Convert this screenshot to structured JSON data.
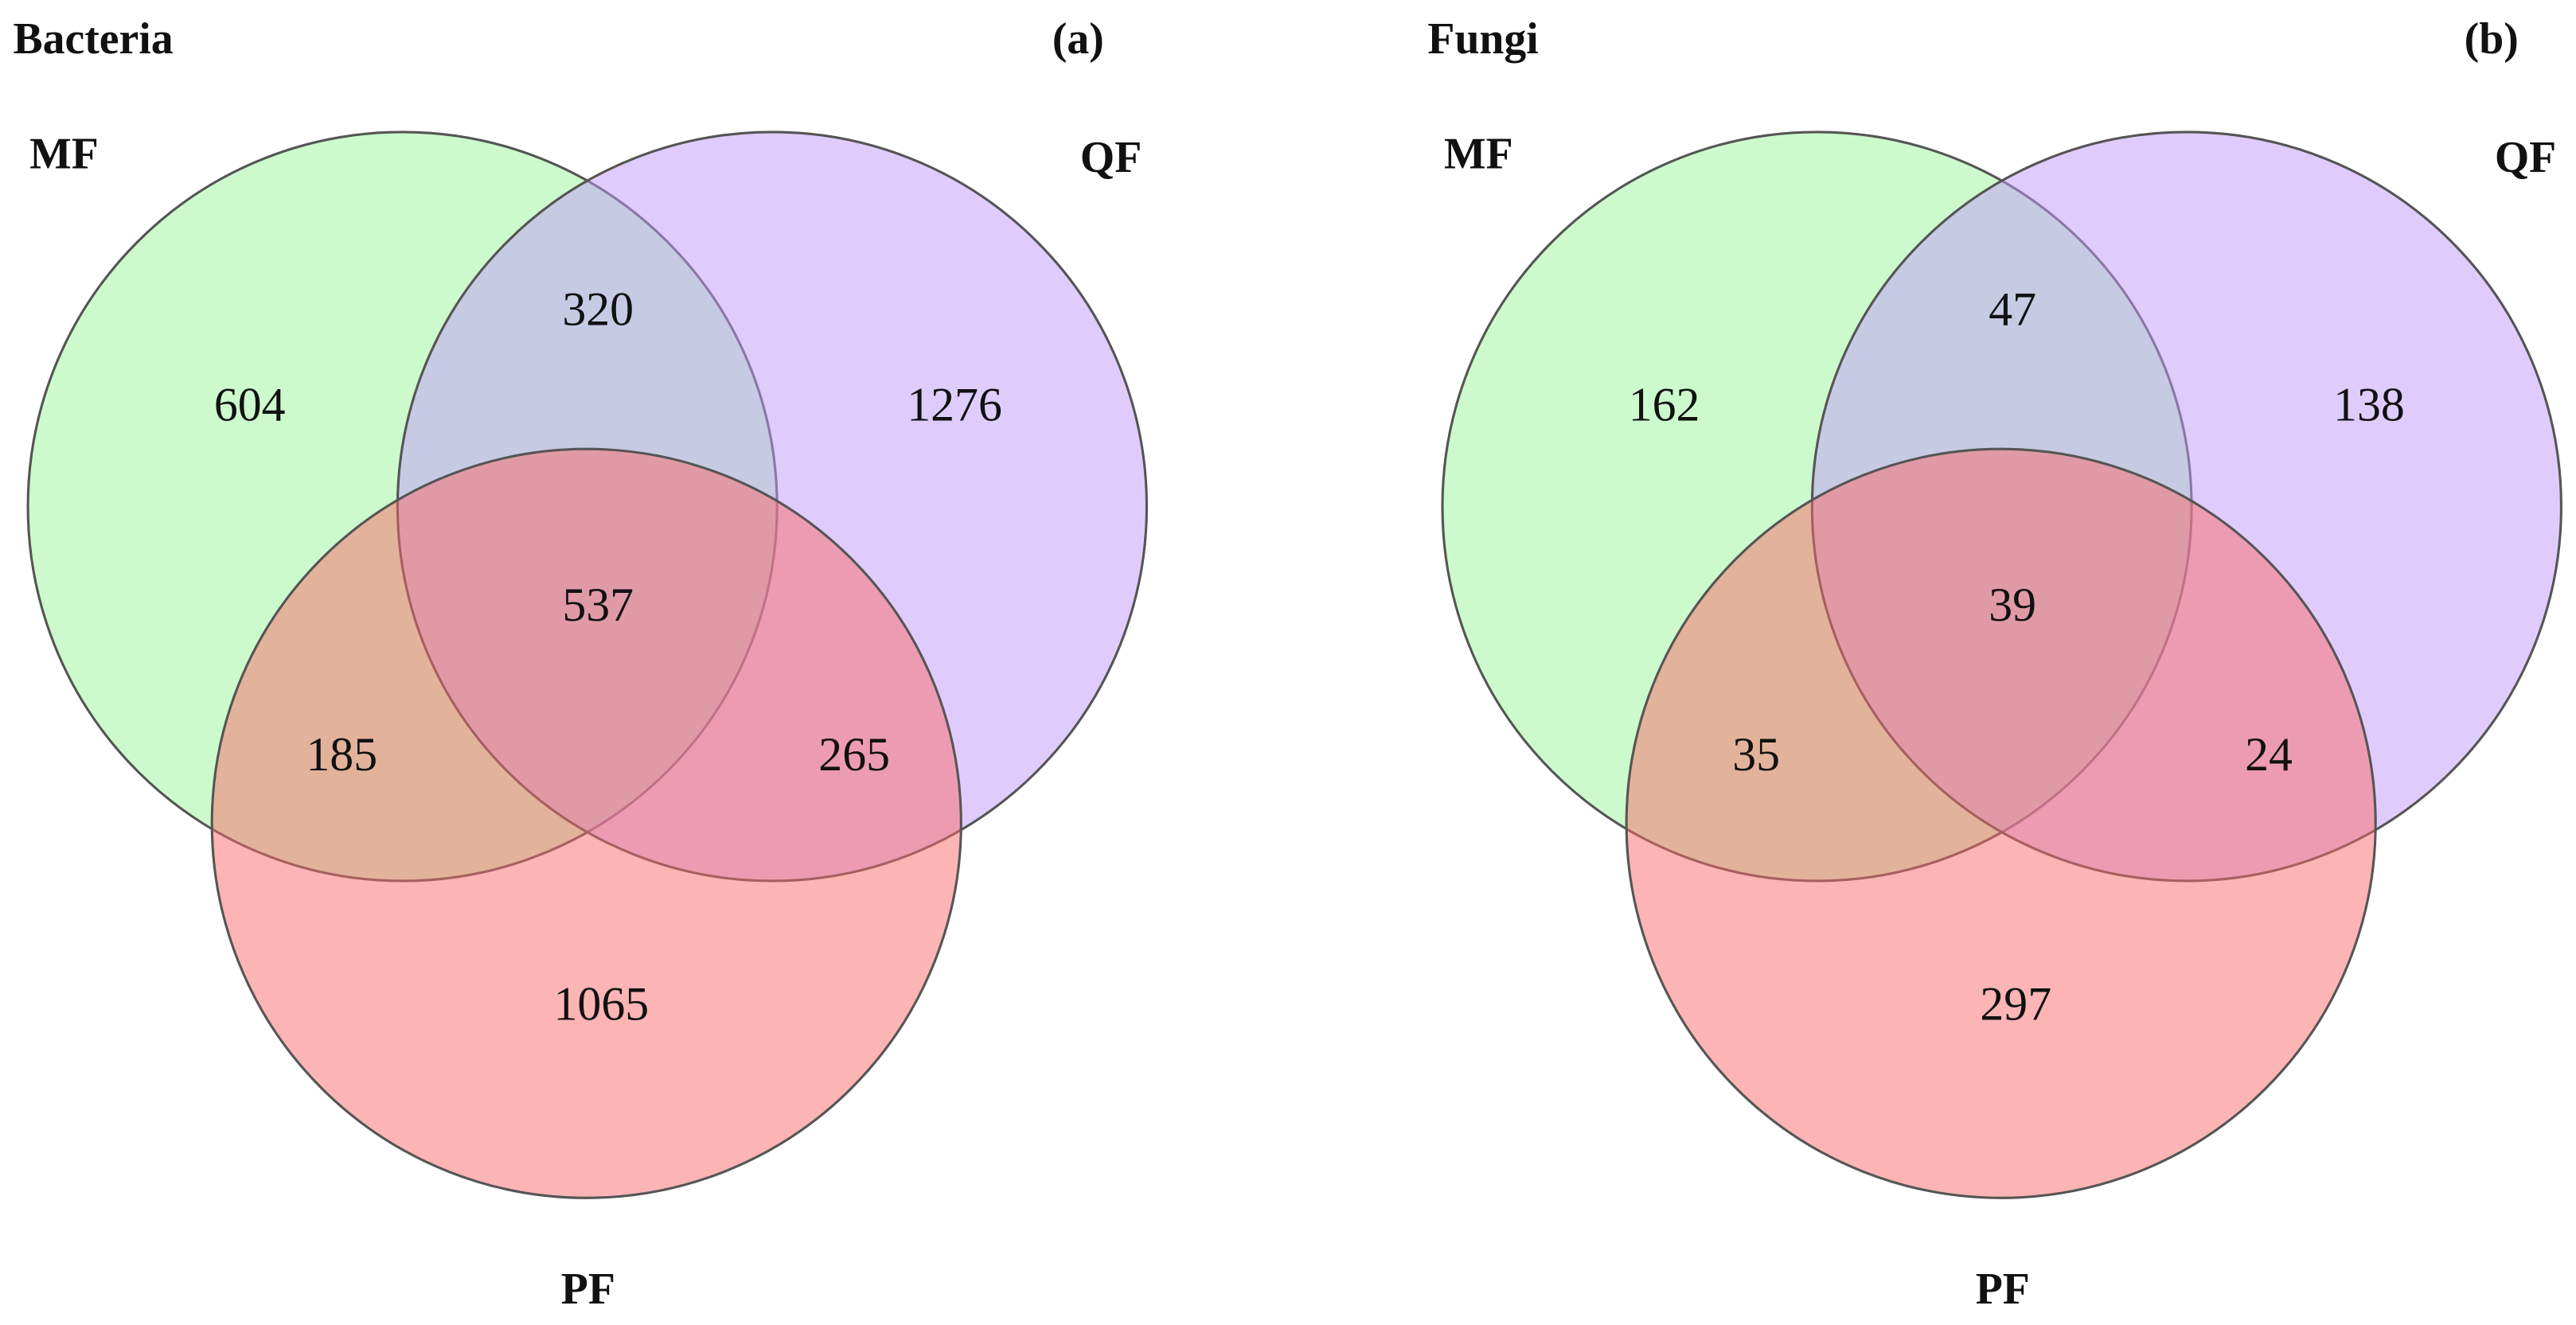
{
  "chart_data": [
    {
      "type": "venn",
      "title": "Bacteria",
      "panel_label": "(a)",
      "sets": [
        {
          "name": "MF",
          "color": "#99f599"
        },
        {
          "name": "QF",
          "color": "#c199fa"
        },
        {
          "name": "PF",
          "color": "#f96a6a"
        }
      ],
      "values": [
        604,
        1276,
        1065,
        320,
        185,
        265,
        537
      ]
    },
    {
      "type": "venn",
      "title": "Fungi",
      "panel_label": "(b)",
      "sets": [
        {
          "name": "MF",
          "color": "#99f599"
        },
        {
          "name": "QF",
          "color": "#c199fa"
        },
        {
          "name": "PF",
          "color": "#f96a6a"
        }
      ],
      "values": [
        162,
        138,
        297,
        47,
        35,
        24,
        39
      ]
    }
  ]
}
